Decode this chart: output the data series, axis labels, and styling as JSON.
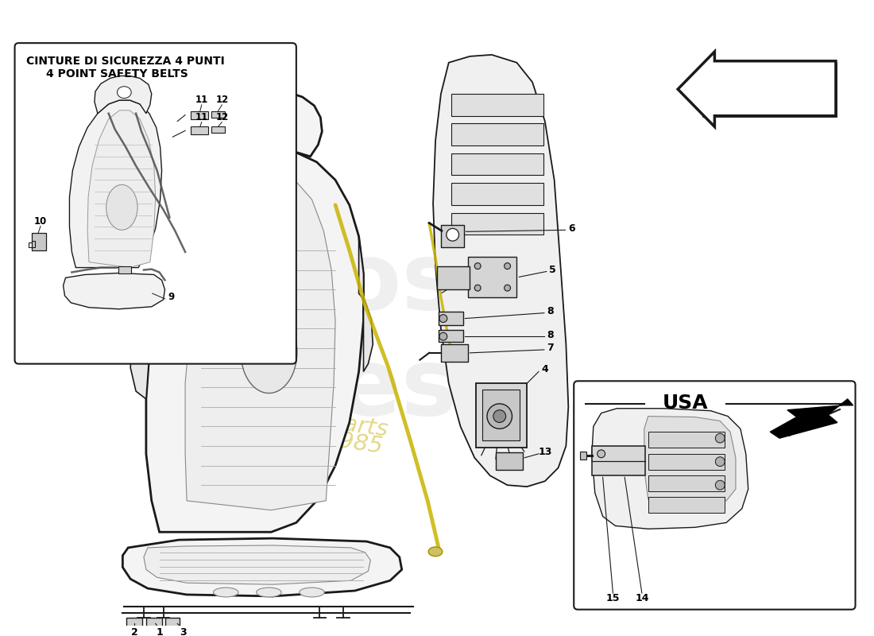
{
  "bg_color": "#ffffff",
  "line_color": "#1a1a1a",
  "inset1_title_line1": "CINTURE DI SICUREZZA 4 PUNTI",
  "inset1_title_line2": "4 POINT SAFETY BELTS",
  "inset2_title": "USA",
  "watermark_gray": "#d5d5d5",
  "watermark_yellow": "#d4c030",
  "seat_fill": "#f4f4f4",
  "pillar_fill": "#eeeeee",
  "part_fill": "#d0d0d0"
}
